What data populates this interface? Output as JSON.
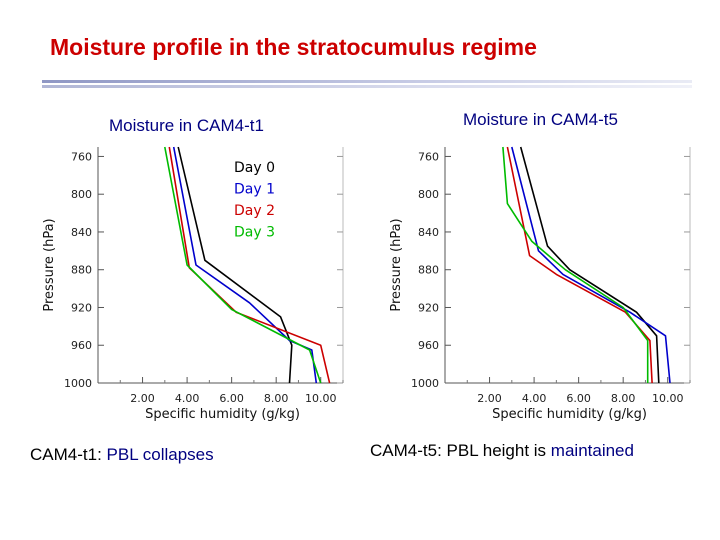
{
  "slide": {
    "title": "Moisture profile in the stratocumulus regime",
    "left_panel_title": "Moisture in CAM4-t1",
    "right_panel_title": "Moisture in CAM4-t5",
    "left_caption_prefix": "CAM4-t1:  ",
    "left_caption_highlight": "PBL collapses",
    "right_caption_prefix": "CAM4-t5:  PBL height is ",
    "right_caption_highlight": "maintained"
  },
  "colors": {
    "title": "#cc0000",
    "panel_title": "#000080",
    "day0": "#000000",
    "day1": "#0000cc",
    "day2": "#cc0000",
    "day3": "#00bb00"
  },
  "chart_data": [
    {
      "type": "line",
      "title": "Moisture in CAM4-t1",
      "xlabel": "Specific humidity  (g/kg)",
      "ylabel": "Pressure  (hPa)",
      "xlim": [
        0,
        11
      ],
      "ylim": [
        1000,
        750
      ],
      "y_inverted": true,
      "xticks": [
        "2.00",
        "4.00",
        "6.00",
        "8.00",
        "10.00"
      ],
      "yticks": [
        "760",
        "800",
        "840",
        "880",
        "920",
        "960",
        "1000"
      ],
      "legend": [
        "Day 0",
        "Day 1",
        "Day 2",
        "Day 3"
      ],
      "legend_placement": "top-center",
      "series": [
        {
          "name": "Day 0",
          "color": "#000000",
          "points": [
            [
              3.6,
              750
            ],
            [
              4.8,
              870
            ],
            [
              8.2,
              930
            ],
            [
              8.7,
              960
            ],
            [
              8.6,
              1000
            ]
          ]
        },
        {
          "name": "Day 1",
          "color": "#0000cc",
          "points": [
            [
              3.4,
              750
            ],
            [
              4.4,
              875
            ],
            [
              6.8,
              915
            ],
            [
              8.6,
              955
            ],
            [
              9.6,
              965
            ],
            [
              9.8,
              1000
            ]
          ]
        },
        {
          "name": "Day 2",
          "color": "#cc0000",
          "points": [
            [
              3.2,
              750
            ],
            [
              4.1,
              878
            ],
            [
              6.2,
              925
            ],
            [
              10.0,
              960
            ],
            [
              10.4,
              1000
            ]
          ]
        },
        {
          "name": "Day 3",
          "color": "#00bb00",
          "points": [
            [
              3.0,
              750
            ],
            [
              4.0,
              875
            ],
            [
              6.0,
              922
            ],
            [
              9.5,
              965
            ],
            [
              10.0,
              1000
            ]
          ]
        }
      ]
    },
    {
      "type": "line",
      "title": "Moisture in CAM4-t5",
      "xlabel": "Specific humidity  (g/kg)",
      "ylabel": "Pressure  (hPa)",
      "xlim": [
        0,
        11
      ],
      "ylim": [
        1000,
        750
      ],
      "y_inverted": true,
      "xticks": [
        "2.00",
        "4.00",
        "6.00",
        "8.00",
        "10.00"
      ],
      "yticks": [
        "760",
        "800",
        "840",
        "880",
        "920",
        "960",
        "1000"
      ],
      "series": [
        {
          "name": "Day 0",
          "color": "#000000",
          "points": [
            [
              3.4,
              750
            ],
            [
              4.6,
              855
            ],
            [
              5.6,
              880
            ],
            [
              8.6,
              925
            ],
            [
              9.5,
              950
            ],
            [
              9.6,
              1000
            ]
          ]
        },
        {
          "name": "Day 1",
          "color": "#0000cc",
          "points": [
            [
              3.0,
              750
            ],
            [
              4.2,
              860
            ],
            [
              5.3,
              885
            ],
            [
              8.3,
              925
            ],
            [
              9.9,
              950
            ],
            [
              10.1,
              1000
            ]
          ]
        },
        {
          "name": "Day 2",
          "color": "#cc0000",
          "points": [
            [
              2.8,
              750
            ],
            [
              3.8,
              865
            ],
            [
              5.0,
              885
            ],
            [
              8.1,
              925
            ],
            [
              9.2,
              955
            ],
            [
              9.3,
              1000
            ]
          ]
        },
        {
          "name": "Day 3",
          "color": "#00bb00",
          "points": [
            [
              2.6,
              750
            ],
            [
              2.8,
              810
            ],
            [
              3.9,
              850
            ],
            [
              5.4,
              880
            ],
            [
              8.0,
              920
            ],
            [
              9.1,
              955
            ],
            [
              9.1,
              1000
            ]
          ]
        }
      ]
    }
  ]
}
